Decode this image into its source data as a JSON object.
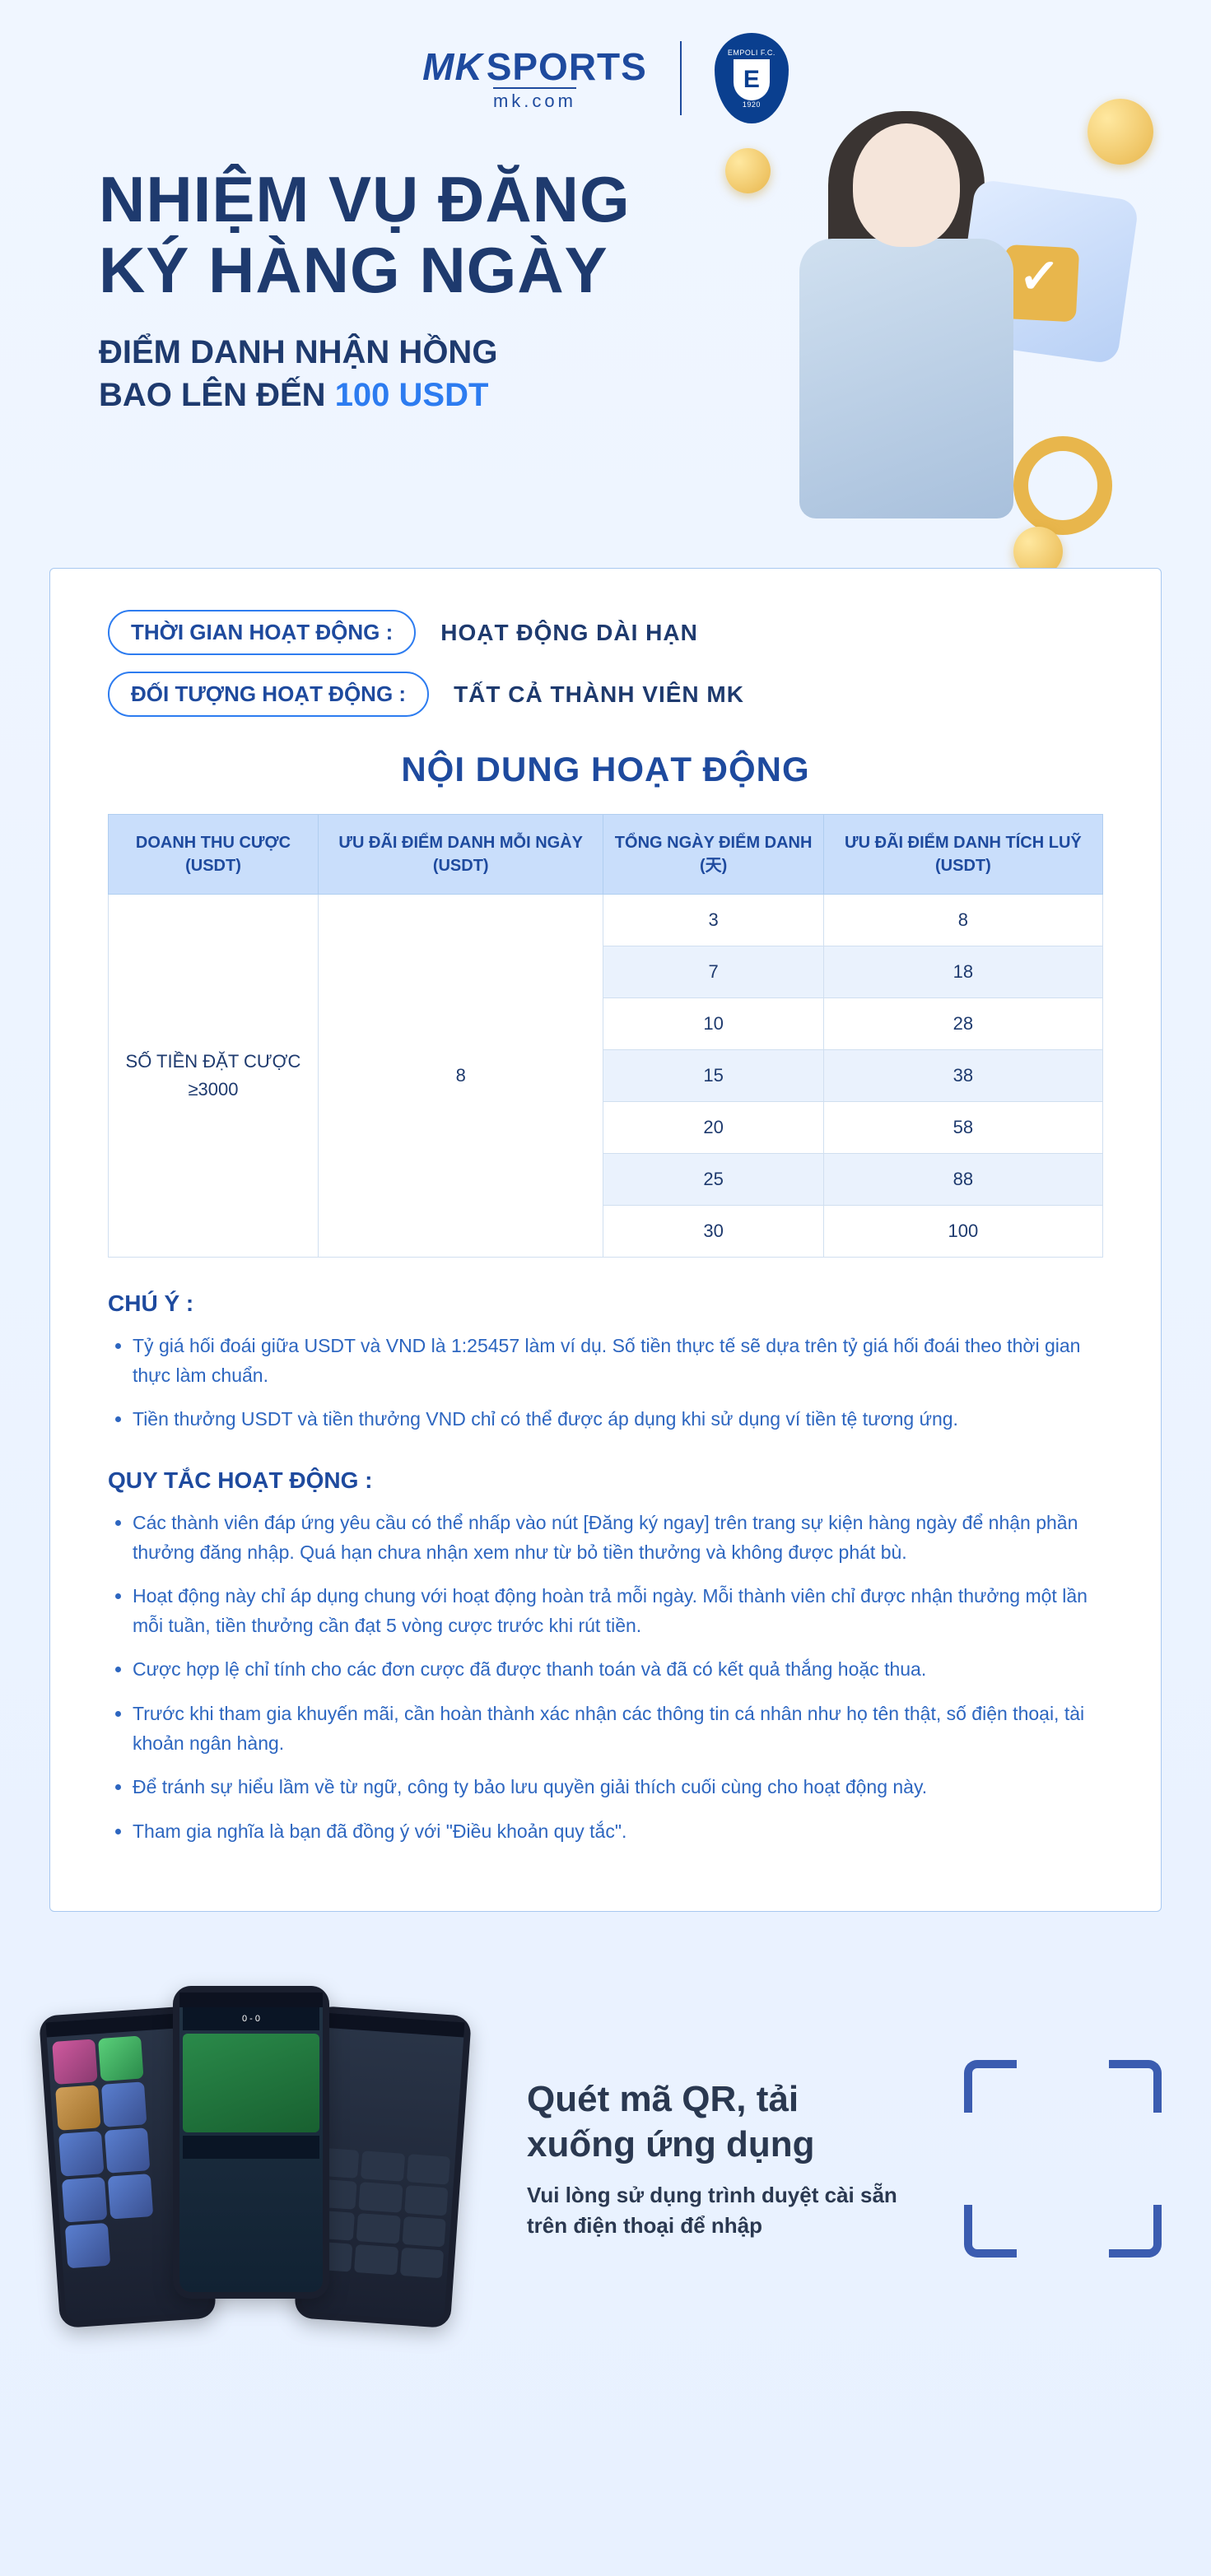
{
  "header": {
    "logo_mk": "MK",
    "logo_sports": "SPORTS",
    "logo_domain": "mk.com",
    "badge_top": "EMPOLI F.C.",
    "badge_letter": "E",
    "badge_year": "1920"
  },
  "hero": {
    "title_l1": "NHIỆM VỤ ĐĂNG",
    "title_l2": "KÝ HÀNG NGÀY",
    "subtitle_l1": "ĐIỂM DANH NHẬN HỒNG",
    "subtitle_l2_a": "BAO LÊN ĐẾN ",
    "subtitle_amount": "100 USDT"
  },
  "info": {
    "time_label": "THỜI GIAN HOẠT ĐỘNG :",
    "time_value": "HOẠT ĐỘNG DÀI HẠN",
    "target_label": "ĐỐI TƯỢNG HOẠT ĐỘNG :",
    "target_value": "TẤT CẢ THÀNH VIÊN MK"
  },
  "content": {
    "section_title": "NỘI DUNG HOẠT ĐỘNG",
    "columns": [
      "DOANH THU CƯỢC (USDT)",
      "ƯU ĐÃI ĐIỂM DANH MỖI NGÀY (USDT)",
      "TỔNG NGÀY ĐIỂM DANH (天)",
      "ƯU ĐÃI ĐIỂM DANH TÍCH LUỸ (USDT)"
    ],
    "bet_label_l1": "SỐ TIỀN ĐẶT CƯỢC",
    "bet_label_l2": "≥3000",
    "daily_bonus": "8",
    "rows": [
      {
        "days": "3",
        "cum": "8"
      },
      {
        "days": "7",
        "cum": "18"
      },
      {
        "days": "10",
        "cum": "28"
      },
      {
        "days": "15",
        "cum": "38"
      },
      {
        "days": "20",
        "cum": "58"
      },
      {
        "days": "25",
        "cum": "88"
      },
      {
        "days": "30",
        "cum": "100"
      }
    ]
  },
  "notes": {
    "heading": "CHÚ Ý :",
    "items": [
      "Tỷ giá hối đoái giữa USDT và VND là 1:25457 làm ví dụ. Số tiền thực tế sẽ dựa trên tỷ giá hối đoái theo thời gian thực làm chuẩn.",
      "Tiền thưởng USDT và tiền thưởng VND chỉ có thể được áp dụng khi sử dụng ví tiền tệ tương ứng."
    ]
  },
  "rules": {
    "heading": "QUY TẮC HOẠT ĐỘNG :",
    "items": [
      "Các thành viên đáp ứng yêu cầu có thể nhấp vào nút [Đăng ký ngay] trên trang sự kiện hàng ngày để nhận phần thưởng đăng nhập. Quá hạn chưa nhận xem như từ bỏ tiền thưởng và không được phát bù.",
      "Hoạt động này chỉ áp dụng chung với hoạt động hoàn trả mỗi ngày. Mỗi thành viên chỉ được nhận thưởng một lần mỗi tuần, tiền thưởng cần đạt 5 vòng cược trước khi rút tiền.",
      "Cược hợp lệ chỉ tính cho các đơn cược đã được thanh toán và đã có kết quả thắng hoặc thua.",
      "Trước khi tham gia khuyến mãi, cần hoàn thành xác nhận các thông tin cá nhân như họ tên thật, số điện thoại, tài khoản ngân hàng.",
      "Để tránh sự hiểu lầm về từ ngữ, công ty bảo lưu quyền giải thích cuối cùng cho hoạt động này.",
      "Tham gia nghĩa là bạn đã đồng ý với \"Điều khoản quy tắc\"."
    ]
  },
  "footer": {
    "title": "Quét mã QR, tải xuống ứng dụng",
    "subtitle": "Vui lòng sử dụng trình duyệt cài sẵn trên điện thoại để nhập",
    "score": "0 - 0"
  },
  "colors": {
    "primary": "#1e4a9e",
    "accent": "#2d7cf0",
    "text": "#1e3a6e",
    "table_header_bg": "#c9defb",
    "table_stripe": "#eaf2fd",
    "gold": "#e8b64c",
    "bg_top": "#f0f6ff",
    "footer_text": "#2a3850"
  }
}
